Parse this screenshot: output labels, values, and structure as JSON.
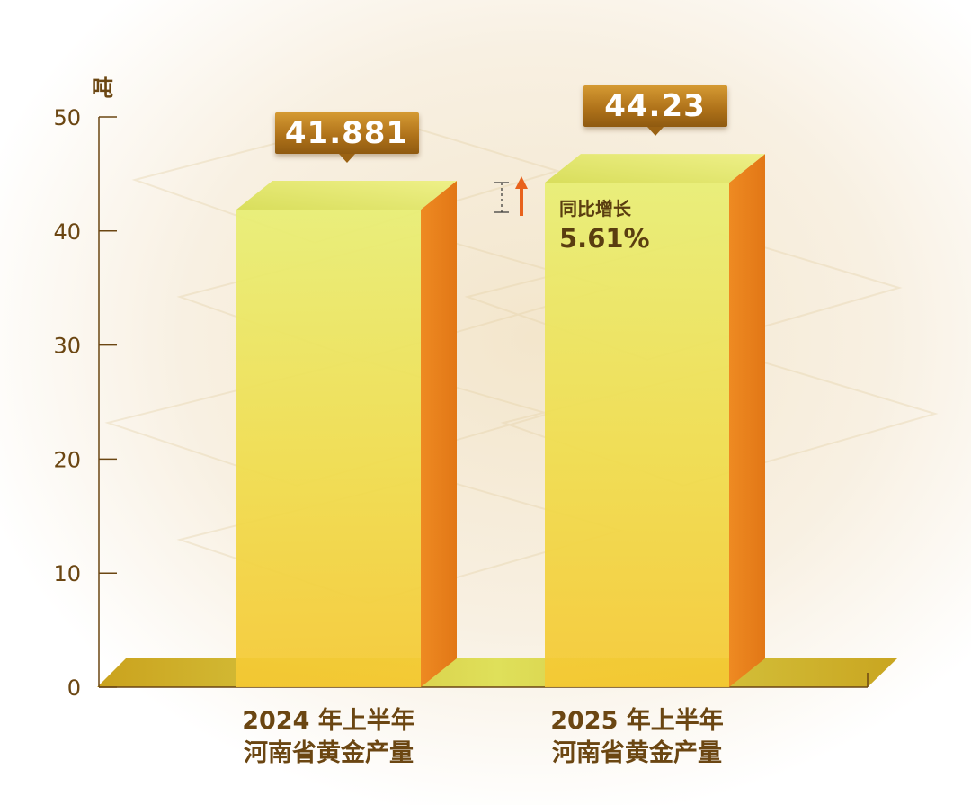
{
  "chart_data": {
    "type": "bar",
    "categories": [
      [
        "2024 年上半年",
        "河南省黄金产量"
      ],
      [
        "2025 年上半年",
        "河南省黄金产量"
      ]
    ],
    "values": [
      41.881,
      44.23
    ],
    "value_labels": [
      "41.881",
      "44.23"
    ],
    "ylabel": "吨",
    "ylim": [
      0,
      50
    ],
    "yticks": [
      "0",
      "10",
      "20",
      "30",
      "40",
      "50"
    ],
    "annotation": {
      "label": "同比增长",
      "value": "5.61%"
    },
    "grid": false
  },
  "colors": {
    "bar_front_top": "#e9ee72",
    "bar_front_bottom": "#f3d33a",
    "bar_side": "#e9811f",
    "bar_top": "#dde56a",
    "axis": "#6b4612",
    "text": "#6b4612",
    "arrow": "#e8621c"
  }
}
